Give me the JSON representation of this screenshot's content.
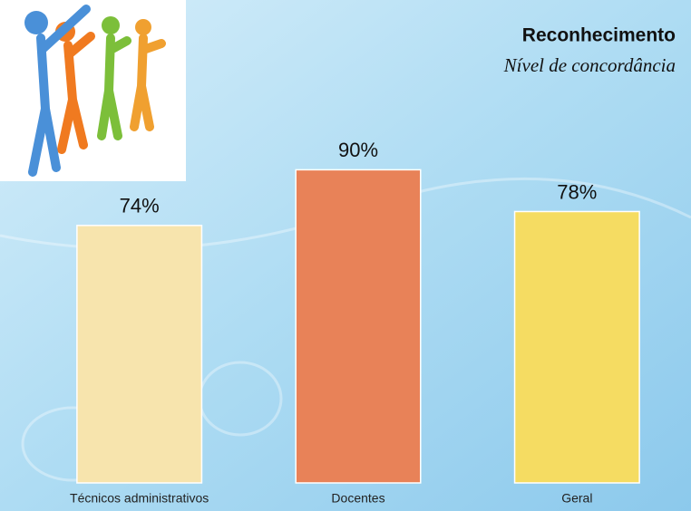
{
  "chart_data": {
    "type": "bar",
    "title": "Reconhecimento",
    "subtitle": "Nível de concordância",
    "categories": [
      "Técnicos administrativos",
      "Docentes",
      "Geral"
    ],
    "values": [
      74,
      90,
      78
    ],
    "value_labels": [
      "74%",
      "90%",
      "78%"
    ],
    "colors": [
      "#f7e4ad",
      "#e88258",
      "#f5dc62"
    ],
    "ylim": [
      0,
      100
    ]
  }
}
